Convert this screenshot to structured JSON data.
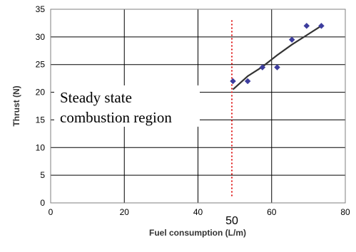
{
  "chart_data": {
    "type": "scatter",
    "xlabel": "Fuel consumption (L/m)",
    "ylabel": "Thrust (N)",
    "xlim": [
      0,
      80
    ],
    "ylim": [
      0,
      35
    ],
    "x_ticks": [
      0,
      20,
      40,
      60,
      80
    ],
    "y_ticks": [
      0,
      5,
      10,
      15,
      20,
      25,
      30,
      35
    ],
    "grid": "major gridlines: vertical every 20, horizontal every 5",
    "series": [
      {
        "marker": "diamond",
        "color": "#3d3d9e",
        "points": [
          {
            "x": 49.5,
            "y": 22.0
          },
          {
            "x": 53.5,
            "y": 22.0
          },
          {
            "x": 57.5,
            "y": 24.5
          },
          {
            "x": 61.5,
            "y": 24.5
          },
          {
            "x": 65.5,
            "y": 29.5
          },
          {
            "x": 69.5,
            "y": 32.0
          },
          {
            "x": 73.5,
            "y": 32.0
          }
        ]
      }
    ],
    "trendline": {
      "color": "#333333",
      "points": [
        {
          "x": 49.5,
          "y": 20.5
        },
        {
          "x": 53.5,
          "y": 22.9
        },
        {
          "x": 57.5,
          "y": 24.6
        },
        {
          "x": 61.5,
          "y": 26.7
        },
        {
          "x": 65.5,
          "y": 28.6
        },
        {
          "x": 69.5,
          "y": 30.3
        },
        {
          "x": 73.5,
          "y": 32.0
        }
      ]
    },
    "reference_line": {
      "x": 49.2,
      "y_range": [
        1.0,
        33.0
      ],
      "color": "#e02020",
      "style": "dotted",
      "label": "50"
    },
    "annotation": {
      "lines": [
        "Steady state",
        "combustion region"
      ]
    }
  }
}
